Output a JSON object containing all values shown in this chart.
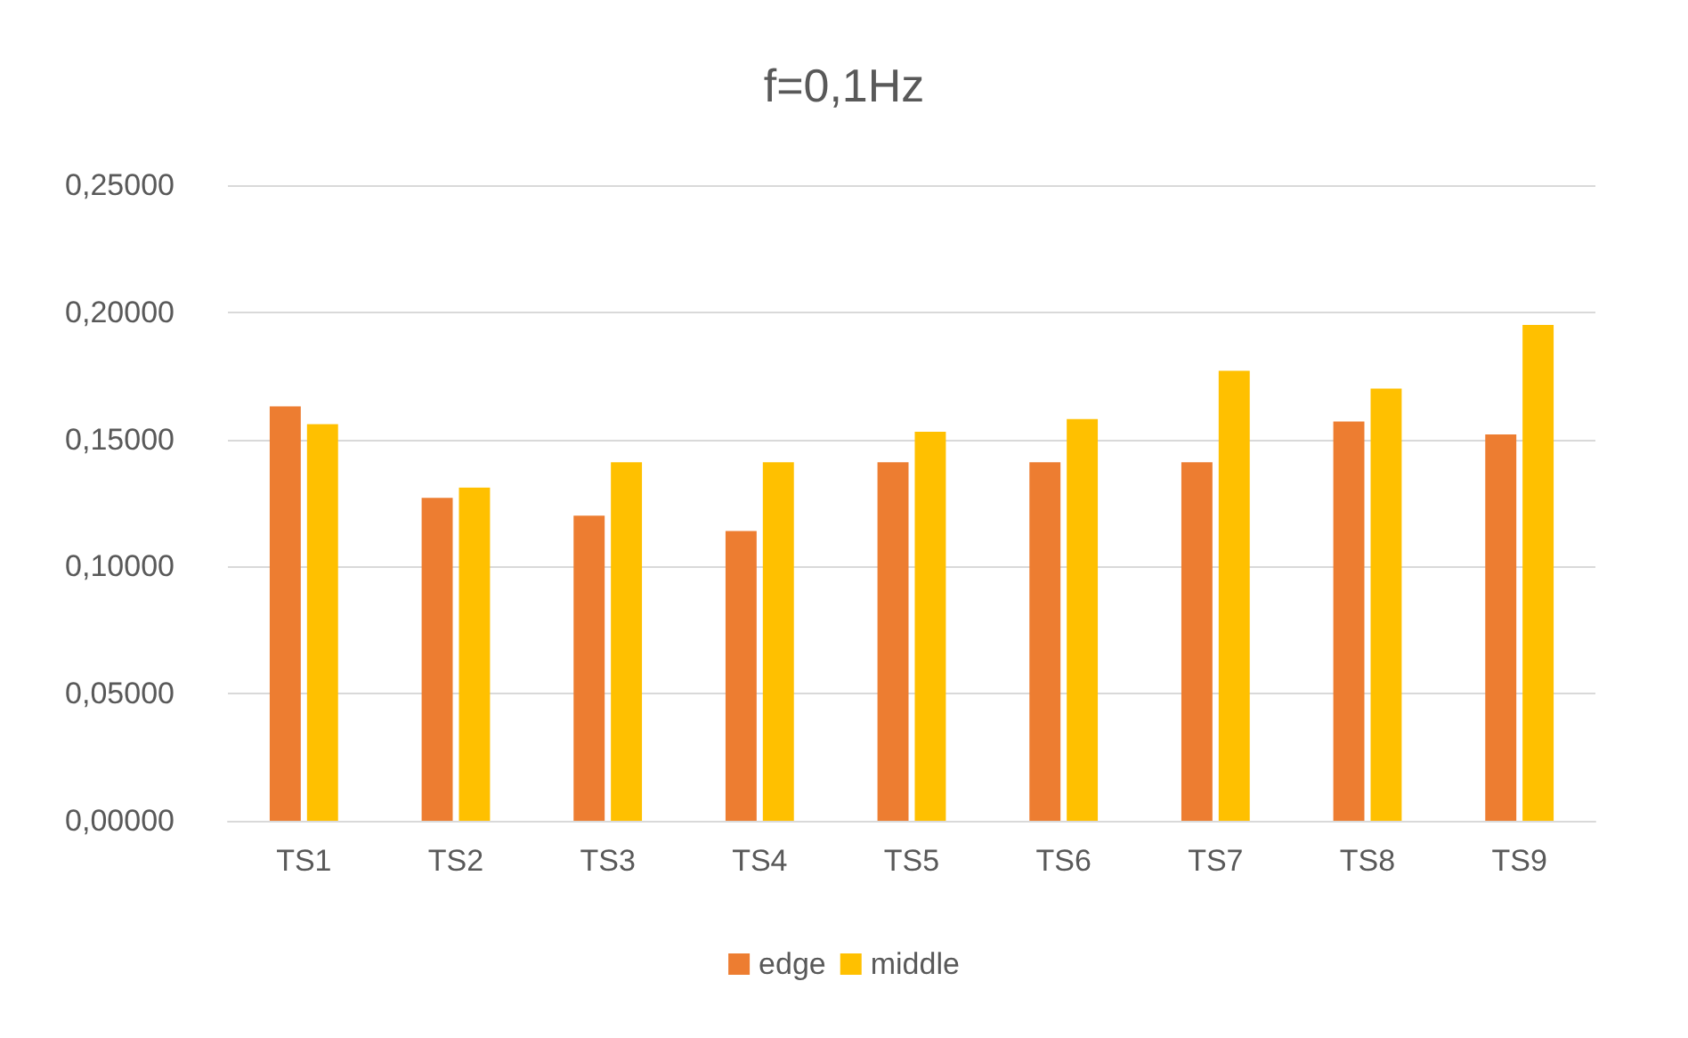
{
  "chart_data": {
    "type": "bar",
    "title": "f=0,1Hz",
    "categories": [
      "TS1",
      "TS2",
      "TS3",
      "TS4",
      "TS5",
      "TS6",
      "TS7",
      "TS8",
      "TS9"
    ],
    "series": [
      {
        "name": "edge",
        "color": "#ed7d31",
        "values": [
          0.163,
          0.127,
          0.12,
          0.114,
          0.141,
          0.141,
          0.141,
          0.157,
          0.152
        ]
      },
      {
        "name": "middle",
        "color": "#ffc000",
        "values": [
          0.156,
          0.131,
          0.141,
          0.141,
          0.153,
          0.158,
          0.177,
          0.17,
          0.195
        ]
      }
    ],
    "ylim": [
      0,
      0.25
    ],
    "yticks": [
      {
        "value": 0,
        "label": "0,00000"
      },
      {
        "value": 0.05,
        "label": "0,05000"
      },
      {
        "value": 0.1,
        "label": "0,10000"
      },
      {
        "value": 0.15,
        "label": "0,15000"
      },
      {
        "value": 0.2,
        "label": "0,20000"
      },
      {
        "value": 0.25,
        "label": "0,25000"
      }
    ],
    "grid": "y",
    "legend": "bottom"
  }
}
